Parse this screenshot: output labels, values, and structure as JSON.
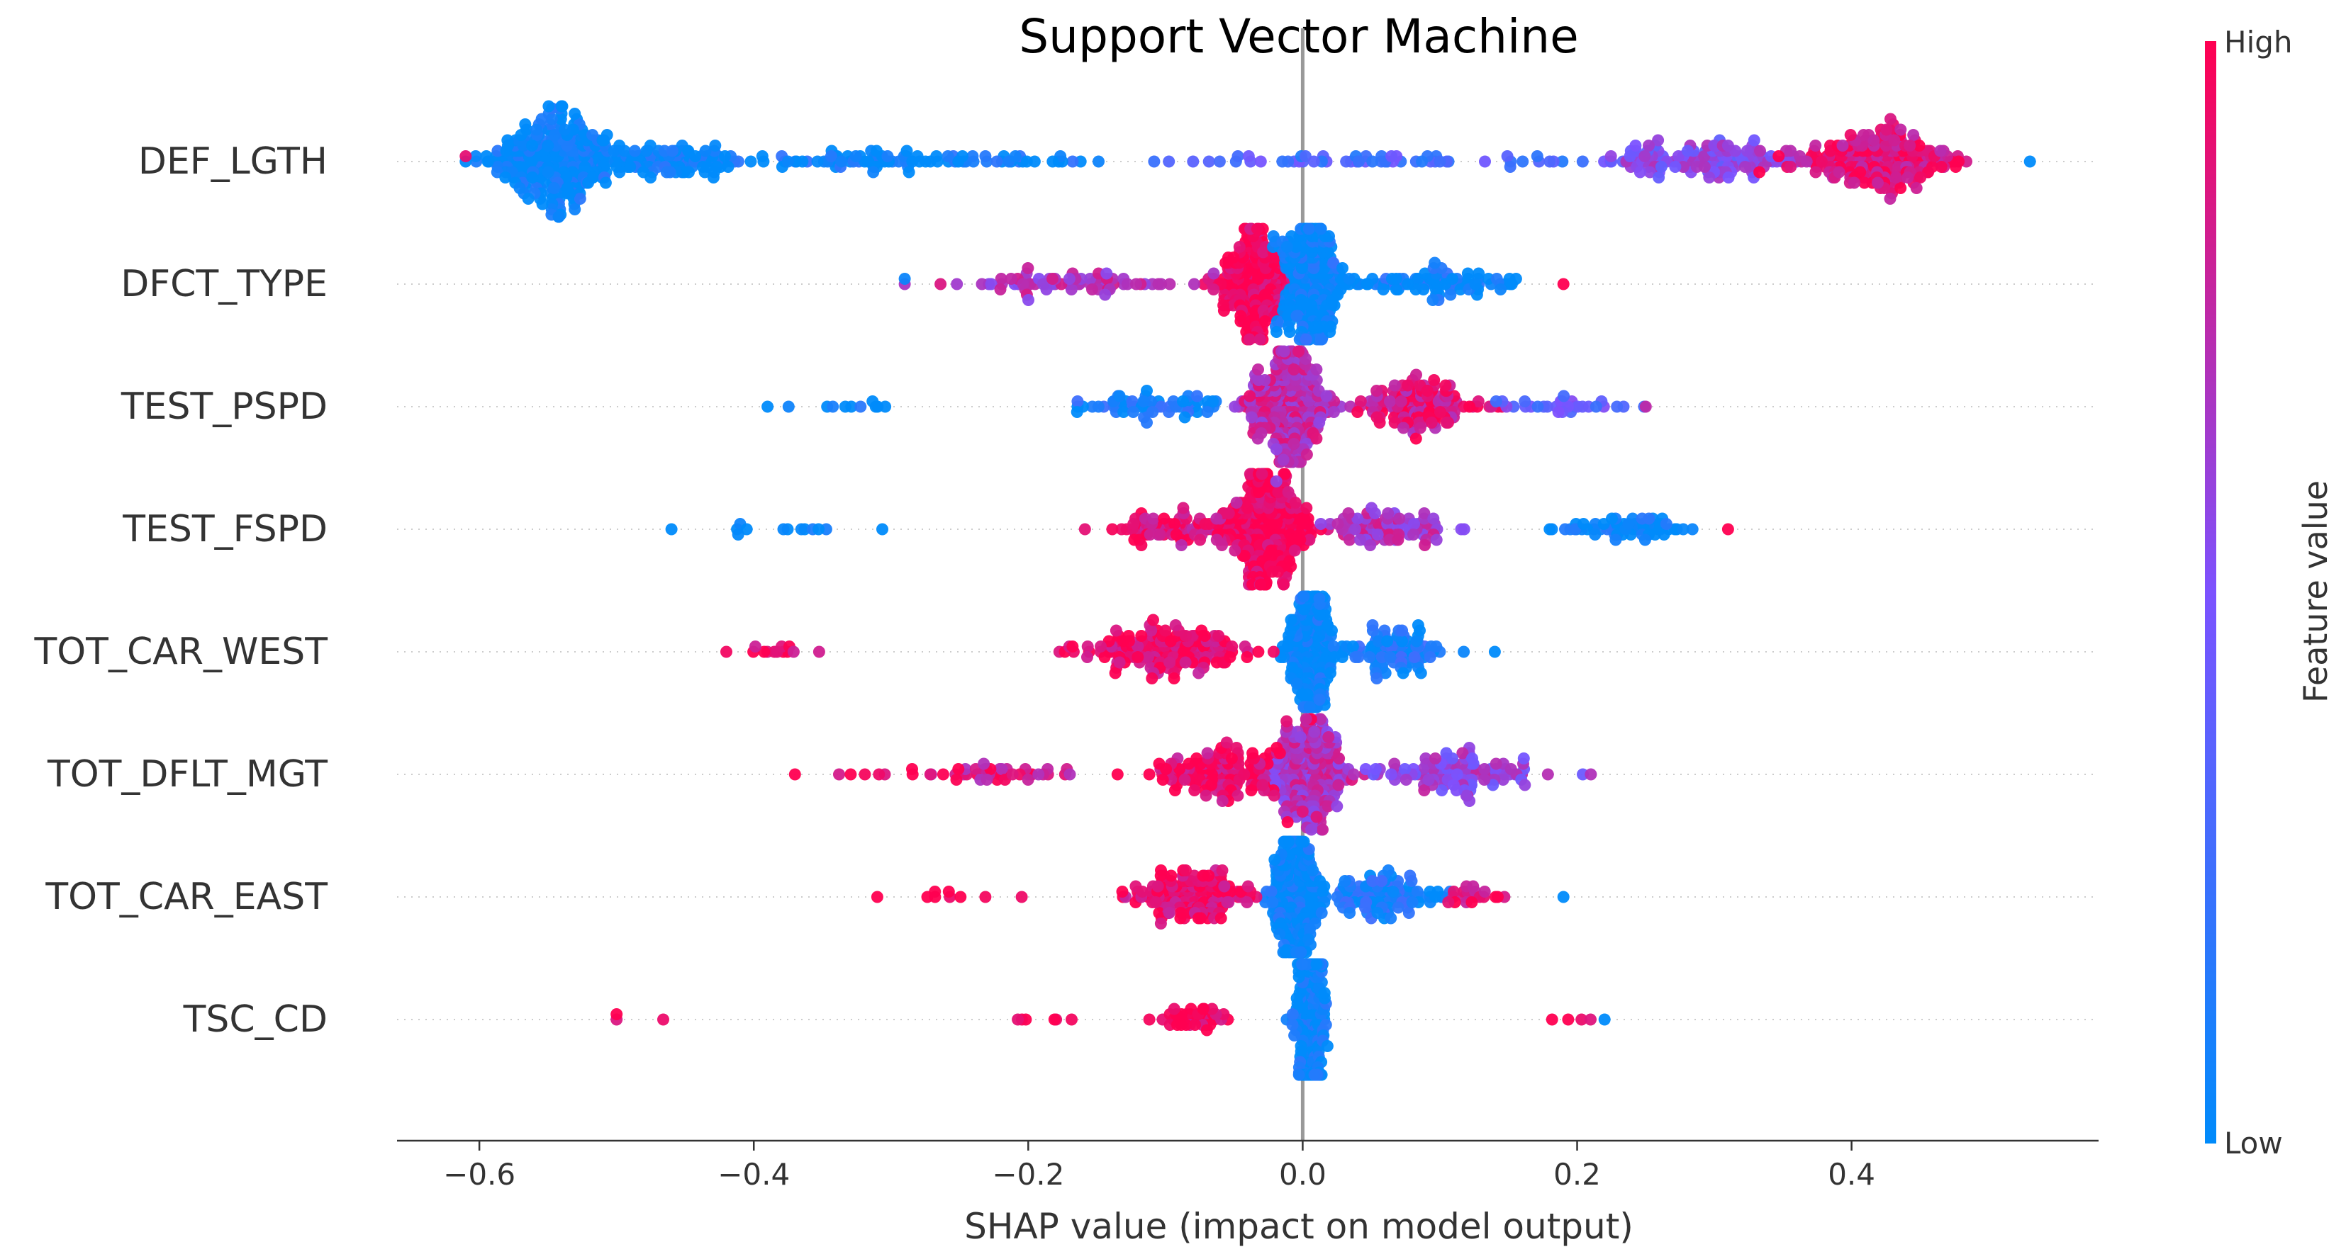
{
  "chart_data": {
    "type": "scatter",
    "subtype": "shap-beeswarm",
    "title": "Support Vector Machine",
    "xlabel": "SHAP value (impact on model output)",
    "xlim": [
      -0.66,
      0.58
    ],
    "xticks": [
      -0.6,
      -0.4,
      -0.2,
      0.0,
      0.2,
      0.4
    ],
    "xtick_labels": [
      "−0.6",
      "−0.4",
      "−0.2",
      "0.0",
      "0.2",
      "0.4"
    ],
    "colorbar": {
      "label": "Feature value",
      "high_label": "High",
      "low_label": "Low",
      "low_color": "#008bfb",
      "mid_color": "#7c52ff",
      "high_color": "#ff0051"
    },
    "zero_line_color": "#999999",
    "grid": "dotted horizontal row guides",
    "features": [
      {
        "name": "DEF_LGTH",
        "range": [
          -0.61,
          0.53
        ],
        "clusters": [
          {
            "center": -0.545,
            "spread": 0.045,
            "count": 260,
            "feature_value": 0.0
          },
          {
            "center": -0.47,
            "spread": 0.07,
            "count": 110,
            "feature_value": 0.02
          },
          {
            "center": -0.3,
            "spread": 0.14,
            "count": 90,
            "feature_value": 0.05
          },
          {
            "center": 0.05,
            "spread": 0.16,
            "count": 60,
            "feature_value": 0.3
          },
          {
            "center": 0.3,
            "spread": 0.07,
            "count": 140,
            "feature_value": 0.55
          },
          {
            "center": 0.42,
            "spread": 0.06,
            "count": 210,
            "feature_value": 0.9
          }
        ]
      },
      {
        "name": "DFCT_TYPE",
        "range": [
          -0.29,
          0.19
        ],
        "clusters": [
          {
            "center": -0.035,
            "spread": 0.025,
            "count": 210,
            "feature_value": 1.0
          },
          {
            "center": 0.005,
            "spread": 0.022,
            "count": 230,
            "feature_value": 0.0
          },
          {
            "center": -0.17,
            "spread": 0.09,
            "count": 70,
            "feature_value": 0.7
          },
          {
            "center": 0.09,
            "spread": 0.075,
            "count": 90,
            "feature_value": 0.05
          }
        ]
      },
      {
        "name": "TEST_PSPD",
        "range": [
          -0.39,
          0.25
        ],
        "clusters": [
          {
            "center": -0.01,
            "spread": 0.03,
            "count": 260,
            "feature_value": 0.75
          },
          {
            "center": 0.085,
            "spread": 0.045,
            "count": 130,
            "feature_value": 0.85
          },
          {
            "center": -0.11,
            "spread": 0.05,
            "count": 60,
            "feature_value": 0.1
          },
          {
            "center": 0.19,
            "spread": 0.05,
            "count": 30,
            "feature_value": 0.4
          },
          {
            "center": -0.33,
            "spread": 0.04,
            "count": 10,
            "feature_value": 0.0
          }
        ]
      },
      {
        "name": "TEST_FSPD",
        "range": [
          -0.46,
          0.31
        ],
        "clusters": [
          {
            "center": -0.025,
            "spread": 0.03,
            "count": 270,
            "feature_value": 1.0
          },
          {
            "center": -0.09,
            "spread": 0.05,
            "count": 80,
            "feature_value": 0.9
          },
          {
            "center": 0.06,
            "spread": 0.05,
            "count": 90,
            "feature_value": 0.7
          },
          {
            "center": 0.24,
            "spread": 0.045,
            "count": 60,
            "feature_value": 0.0
          },
          {
            "center": -0.35,
            "spread": 0.07,
            "count": 12,
            "feature_value": 0.0
          }
        ]
      },
      {
        "name": "TOT_CAR_WEST",
        "range": [
          -0.42,
          0.14
        ],
        "clusters": [
          {
            "center": 0.005,
            "spread": 0.018,
            "count": 200,
            "feature_value": 0.0
          },
          {
            "center": -0.1,
            "spread": 0.06,
            "count": 170,
            "feature_value": 0.95
          },
          {
            "center": 0.07,
            "spread": 0.04,
            "count": 90,
            "feature_value": 0.1
          },
          {
            "center": -0.38,
            "spread": 0.025,
            "count": 12,
            "feature_value": 0.95
          }
        ]
      },
      {
        "name": "TOT_DFLT_MGT",
        "range": [
          -0.37,
          0.21
        ],
        "clusters": [
          {
            "center": 0.005,
            "spread": 0.03,
            "count": 230,
            "feature_value": 0.7
          },
          {
            "center": -0.06,
            "spread": 0.05,
            "count": 140,
            "feature_value": 0.95
          },
          {
            "center": 0.11,
            "spread": 0.055,
            "count": 110,
            "feature_value": 0.6
          },
          {
            "center": -0.22,
            "spread": 0.06,
            "count": 40,
            "feature_value": 0.85
          },
          {
            "center": -0.3,
            "spread": 0.04,
            "count": 8,
            "feature_value": 1.0
          }
        ]
      },
      {
        "name": "TOT_CAR_EAST",
        "range": [
          -0.31,
          0.19
        ],
        "clusters": [
          {
            "center": -0.005,
            "spread": 0.018,
            "count": 220,
            "feature_value": 0.0
          },
          {
            "center": -0.08,
            "spread": 0.045,
            "count": 150,
            "feature_value": 0.95
          },
          {
            "center": 0.06,
            "spread": 0.045,
            "count": 110,
            "feature_value": 0.1
          },
          {
            "center": 0.13,
            "spread": 0.025,
            "count": 20,
            "feature_value": 0.9
          },
          {
            "center": -0.24,
            "spread": 0.04,
            "count": 8,
            "feature_value": 1.0
          }
        ]
      },
      {
        "name": "TSC_CD",
        "range": [
          -0.5,
          0.22
        ],
        "clusters": [
          {
            "center": 0.005,
            "spread": 0.011,
            "count": 260,
            "feature_value": 0.0
          },
          {
            "center": -0.08,
            "spread": 0.03,
            "count": 40,
            "feature_value": 1.0
          },
          {
            "center": -0.2,
            "spread": 0.05,
            "count": 6,
            "feature_value": 1.0
          },
          {
            "center": 0.19,
            "spread": 0.025,
            "count": 4,
            "feature_value": 1.0
          },
          {
            "center": -0.43,
            "spread": 0.07,
            "count": 2,
            "feature_value": 1.0
          }
        ]
      }
    ]
  }
}
